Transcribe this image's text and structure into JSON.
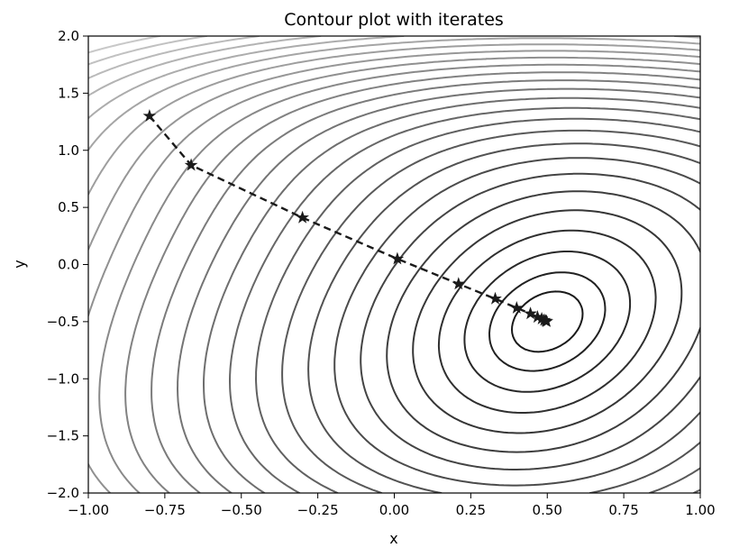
{
  "chart_data": {
    "type": "contour",
    "title": "Contour plot with iterates",
    "xlabel": "x",
    "ylabel": "y",
    "xlim": [
      -1.0,
      1.0
    ],
    "ylim": [
      -2.0,
      2.0
    ],
    "x_ticks": [
      -1.0,
      -0.75,
      -0.5,
      -0.25,
      0.0,
      0.25,
      0.5,
      0.75,
      1.0
    ],
    "x_tick_labels": [
      "−1.00",
      "−0.75",
      "−0.50",
      "−0.25",
      "0.00",
      "0.25",
      "0.50",
      "0.75",
      "1.00"
    ],
    "y_ticks": [
      -2.0,
      -1.5,
      -1.0,
      -0.5,
      0.0,
      0.5,
      1.0,
      1.5,
      2.0
    ],
    "y_tick_labels": [
      "−2.0",
      "−1.5",
      "−1.0",
      "−0.5",
      "0.0",
      "0.5",
      "1.0",
      "1.5",
      "2.0"
    ],
    "grid": false,
    "contours": {
      "center": [
        0.5,
        -0.5
      ],
      "color_low": "#1a1a1a",
      "color_high": "#c8c8c8"
    },
    "series": [
      {
        "marker": "star",
        "line_style": "dashed",
        "color": "#1a1a1a",
        "x": [
          -0.8,
          -0.664,
          -0.3,
          0.01,
          0.21,
          0.33,
          0.4,
          0.445,
          0.468,
          0.482,
          0.49,
          0.495,
          0.498
        ],
        "y": [
          1.3,
          0.87,
          0.41,
          0.05,
          -0.17,
          -0.3,
          -0.38,
          -0.43,
          -0.46,
          -0.475,
          -0.487,
          -0.494,
          -0.498
        ]
      }
    ]
  }
}
